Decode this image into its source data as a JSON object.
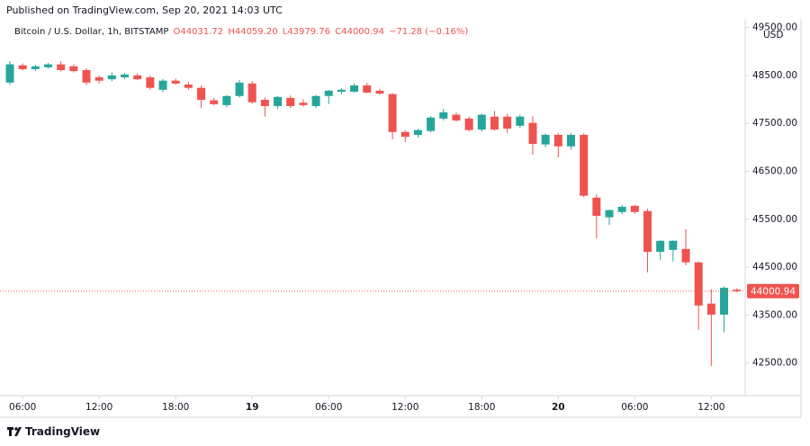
{
  "header": {
    "published": "Published on TradingView.com, Sep 20, 2021 14:03 UTC"
  },
  "footer": {
    "brand": "TradingView"
  },
  "chart_data": {
    "type": "candlestick",
    "title": "Bitcoin / U.S. Dollar, 1h, BITSTAMP",
    "quote": [
      "O44031.72",
      "H44059.20",
      "L43979.76",
      "C44000.94",
      "−71.28 (−0.16%)"
    ],
    "y_unit": "USD",
    "categories": [
      null,
      "06:00",
      null,
      null,
      null,
      null,
      null,
      "12:00",
      null,
      null,
      null,
      null,
      null,
      "18:00",
      null,
      null,
      null,
      null,
      null,
      "19",
      null,
      null,
      null,
      null,
      null,
      "06:00",
      null,
      null,
      null,
      null,
      null,
      "12:00",
      null,
      null,
      null,
      null,
      null,
      "18:00",
      null,
      null,
      null,
      null,
      null,
      "20",
      null,
      null,
      null,
      null,
      null,
      "06:00",
      null,
      null,
      null,
      null,
      null,
      "12:00",
      null,
      null
    ],
    "open": [
      48350,
      48710,
      48630,
      48670,
      48730,
      48690,
      48610,
      48460,
      48420,
      48460,
      48500,
      48460,
      48200,
      48390,
      48310,
      48240,
      47980,
      47880,
      48070,
      48330,
      47990,
      47860,
      48030,
      47930,
      47860,
      48070,
      48160,
      48160,
      48290,
      48180,
      48110,
      47320,
      47260,
      47340,
      47600,
      47680,
      47600,
      47370,
      47640,
      47640,
      47450,
      47510,
      47060,
      47260,
      47020,
      47260,
      45950,
      45540,
      45650,
      45780,
      45670,
      44820,
      44860,
      44880,
      44600,
      43740,
      43510,
      44031.72
    ],
    "high": [
      48800,
      48750,
      48720,
      48760,
      48800,
      48730,
      48650,
      48500,
      48560,
      48550,
      48540,
      48500,
      48420,
      48430,
      48360,
      48290,
      48030,
      48090,
      48400,
      48380,
      48040,
      48070,
      48080,
      48000,
      48090,
      48200,
      48230,
      48330,
      48340,
      48220,
      48130,
      47360,
      47380,
      47650,
      47800,
      47730,
      47640,
      47700,
      47760,
      47700,
      47680,
      47650,
      47290,
      47300,
      47300,
      47290,
      46020,
      45700,
      45800,
      45800,
      45720,
      45060,
      45060,
      45290,
      44620,
      44040,
      44100,
      44059.2
    ],
    "low": [
      48300,
      48600,
      48590,
      48640,
      48580,
      48560,
      48300,
      48330,
      48380,
      48420,
      48400,
      48200,
      48150,
      48300,
      48200,
      47820,
      47880,
      47840,
      48040,
      47910,
      47640,
      47800,
      47820,
      47850,
      47820,
      47900,
      48100,
      48140,
      48130,
      48100,
      47170,
      47110,
      47200,
      47310,
      47560,
      47540,
      47330,
      47330,
      47350,
      47300,
      47400,
      46850,
      47000,
      46790,
      46950,
      45960,
      45100,
      45380,
      45600,
      45610,
      44390,
      44650,
      44620,
      44540,
      43190,
      42440,
      43140,
      43979.76
    ],
    "close": [
      48730,
      48630,
      48690,
      48730,
      48610,
      48590,
      48350,
      48390,
      48500,
      48520,
      48420,
      48240,
      48390,
      48330,
      48240,
      47990,
      47900,
      48070,
      48350,
      47940,
      47860,
      48050,
      47860,
      47880,
      48070,
      48180,
      48200,
      48290,
      48140,
      48120,
      47320,
      47220,
      47360,
      47620,
      47730,
      47560,
      47360,
      47680,
      47370,
      47390,
      47640,
      47070,
      47260,
      47020,
      47260,
      45990,
      45570,
      45690,
      45760,
      45650,
      44820,
      45050,
      45050,
      44600,
      43700,
      43510,
      44070,
      44000.94
    ],
    "up_color": "#26a69a",
    "down_color": "#ef5350",
    "ylim": [
      41820,
      49660
    ],
    "yticks": [
      {
        "value": 42500,
        "label": "42500.00"
      },
      {
        "value": 43500,
        "label": "43500.00"
      },
      {
        "value": 44500,
        "label": "44500.00"
      },
      {
        "value": 45500,
        "label": "45500.00"
      },
      {
        "value": 46500,
        "label": "46500.00"
      },
      {
        "value": 47500,
        "label": "47500.00"
      },
      {
        "value": 48500,
        "label": "48500.00"
      },
      {
        "value": 49500,
        "label": "49500.00"
      }
    ],
    "price_line": {
      "value": 44000.94,
      "label": "44000.94"
    },
    "grid": false
  }
}
